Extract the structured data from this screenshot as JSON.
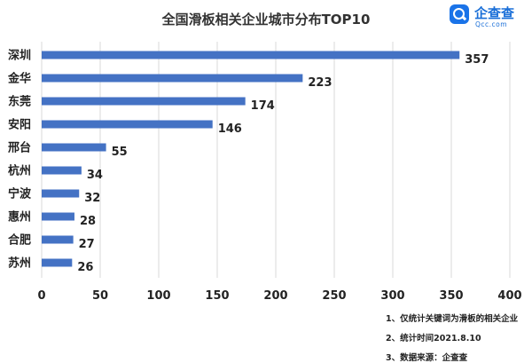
{
  "header": {
    "logo_name": "企查查",
    "logo_url": "Qcc.com",
    "logo_color": "#1a73e8"
  },
  "chart_data": {
    "type": "bar",
    "orientation": "horizontal",
    "title": "全国滑板相关企业城市分布TOP10",
    "categories": [
      "深圳",
      "金华",
      "东莞",
      "安阳",
      "邢台",
      "杭州",
      "宁波",
      "惠州",
      "合肥",
      "苏州"
    ],
    "values": [
      357,
      223,
      174,
      146,
      55,
      34,
      32,
      28,
      27,
      26
    ],
    "xlim": [
      0,
      400
    ],
    "xticks": [
      0,
      50,
      100,
      150,
      200,
      250,
      300,
      350,
      400
    ],
    "grid": true,
    "bar_color": "#4472c4",
    "data_labels": true
  },
  "notes": [
    "1、仅统计关键词为滑板的相关企业",
    "2、统计时间2021.8.10",
    "3、数据来源：企查查"
  ]
}
